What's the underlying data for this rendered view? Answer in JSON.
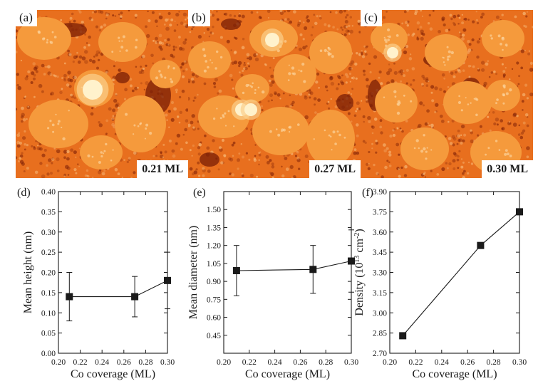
{
  "images": [
    {
      "letter": "(a)",
      "coverage": "0.21 ML"
    },
    {
      "letter": "(b)",
      "coverage": "0.27 ML"
    },
    {
      "letter": "(c)",
      "coverage": "0.30 ML"
    }
  ],
  "colors": {
    "stm_background": "#e86f1e",
    "stm_island": "#f59a3c",
    "stm_dark": "#7a1d05",
    "stm_bright": "#fff2cc",
    "plot_ink": "#1a1a1a"
  },
  "chart_data": [
    {
      "type": "line",
      "letter": "(d)",
      "xlabel": "Co coverage (ML)",
      "ylabel": "Mean height (nm)",
      "xlim": [
        0.2,
        0.3
      ],
      "ylim": [
        0.0,
        0.4
      ],
      "xticks": [
        "0.20",
        "0.22",
        "0.24",
        "0.26",
        "0.28",
        "0.30"
      ],
      "yticks": [
        "0.00",
        "0.05",
        "0.10",
        "0.15",
        "0.20",
        "0.25",
        "0.30",
        "0.35",
        "0.40"
      ],
      "x": [
        0.21,
        0.27,
        0.3
      ],
      "y": [
        0.14,
        0.14,
        0.18
      ],
      "err_low": [
        0.08,
        0.09,
        0.11
      ],
      "err_high": [
        0.2,
        0.19,
        0.25
      ],
      "marker": "square"
    },
    {
      "type": "line",
      "letter": "(e)",
      "xlabel": "Co coverage (ML)",
      "ylabel": "Mean diameter (nm)",
      "xlim": [
        0.2,
        0.3
      ],
      "ylim": [
        0.3,
        1.65
      ],
      "xticks": [
        "0.20",
        "0.22",
        "0.24",
        "0.26",
        "0.28",
        "0.30"
      ],
      "yticks": [
        "0.45",
        "0.60",
        "0.75",
        "0.90",
        "1.05",
        "1.20",
        "1.35",
        "1.50"
      ],
      "x": [
        0.21,
        0.27,
        0.3
      ],
      "y": [
        0.99,
        1.0,
        1.07
      ],
      "err_low": [
        0.78,
        0.8,
        0.81
      ],
      "err_high": [
        1.2,
        1.2,
        1.33
      ],
      "marker": "square"
    },
    {
      "type": "line",
      "letter": "(f)",
      "xlabel": "Co coverage (ML)",
      "ylabel_main": "Density (10",
      "ylabel_sup1": "13",
      "ylabel_mid": " cm",
      "ylabel_sup2": "-2",
      "ylabel_end": ")",
      "xlim": [
        0.2,
        0.3
      ],
      "ylim": [
        2.7,
        3.9
      ],
      "xticks": [
        "0.20",
        "0.22",
        "0.24",
        "0.26",
        "0.28",
        "0.30"
      ],
      "yticks": [
        "2.70",
        "2.85",
        "3.00",
        "3.15",
        "3.30",
        "3.45",
        "3.60",
        "3.75",
        "3.90"
      ],
      "x": [
        0.21,
        0.27,
        0.3
      ],
      "y": [
        2.83,
        3.5,
        3.75
      ],
      "marker": "square"
    }
  ]
}
